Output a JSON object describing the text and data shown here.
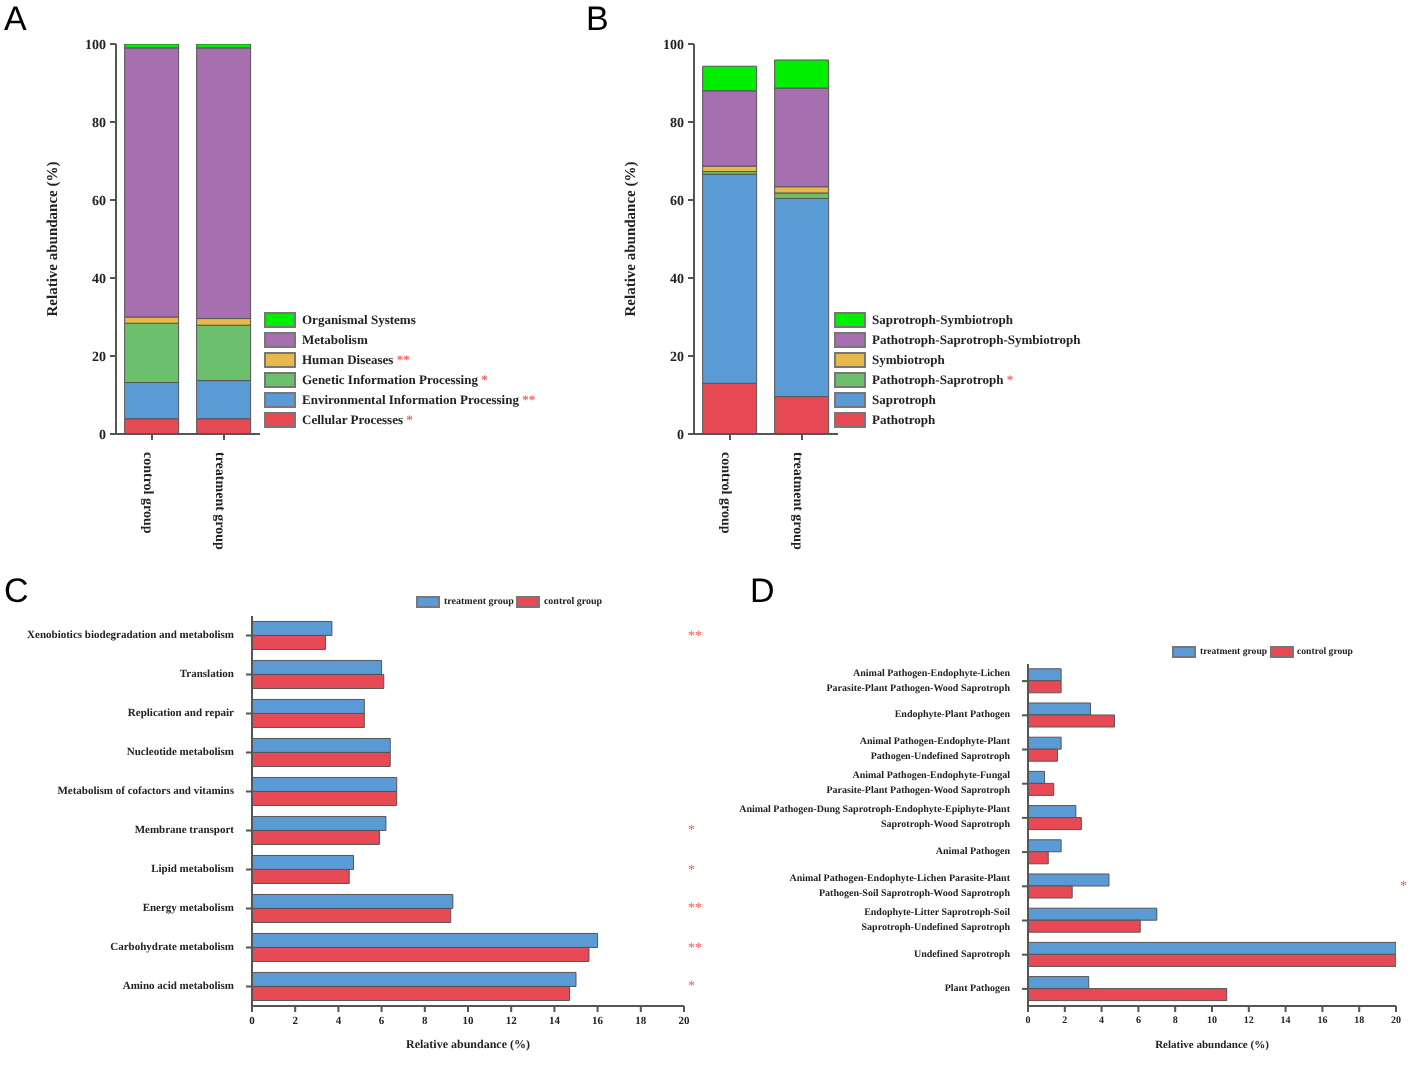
{
  "chart_data": [
    {
      "type": "bar",
      "stacked": true,
      "title": "A",
      "ylabel": "Relative abundance (%)",
      "categories": [
        "control group",
        "treatment group"
      ],
      "ylim": [
        0,
        100
      ],
      "yticks": [
        0,
        20,
        40,
        60,
        80,
        100
      ],
      "legend": "right",
      "series": [
        {
          "name": "Cellular Processes *",
          "color": "#e84a55",
          "values": [
            3.9,
            3.9
          ]
        },
        {
          "name": "Environmental Information Processing **",
          "color": "#5b9bd5",
          "values": [
            9.3,
            9.8
          ]
        },
        {
          "name": "Genetic Information Processing *",
          "color": "#6cbf6c",
          "values": [
            15.2,
            14.2
          ]
        },
        {
          "name": "Human Diseases **",
          "color": "#e8b94a",
          "values": [
            1.6,
            1.7
          ]
        },
        {
          "name": "Metabolism",
          "color": "#a66fb0",
          "values": [
            69.0,
            69.4
          ]
        },
        {
          "name": "Organismal Systems",
          "color": "#00ee00",
          "values": [
            1.0,
            1.0
          ]
        }
      ]
    },
    {
      "type": "bar",
      "stacked": true,
      "title": "B",
      "ylabel": "Relative abundance (%)",
      "categories": [
        "control group",
        "treatment group"
      ],
      "ylim": [
        0,
        100
      ],
      "yticks": [
        0,
        20,
        40,
        60,
        80,
        100
      ],
      "legend": "right",
      "series": [
        {
          "name": "Pathotroph",
          "color": "#e84a55",
          "values": [
            13.0,
            9.6
          ]
        },
        {
          "name": "Saprotroph",
          "color": "#5b9bd5",
          "values": [
            53.6,
            50.8
          ]
        },
        {
          "name": "Pathotroph-Saprotroph *",
          "color": "#6cbf6c",
          "values": [
            0.7,
            1.4
          ]
        },
        {
          "name": "Symbiotroph",
          "color": "#e8b94a",
          "values": [
            1.4,
            1.6
          ]
        },
        {
          "name": "Pathotroph-Saprotroph-Symbiotroph",
          "color": "#a66fb0",
          "values": [
            19.3,
            25.3
          ]
        },
        {
          "name": "Saprotroph-Symbiotroph",
          "color": "#00ee00",
          "values": [
            6.3,
            7.2
          ]
        }
      ]
    },
    {
      "type": "bar",
      "orientation": "horizontal",
      "title": "C",
      "xlabel": "Relative abundance (%)",
      "categories": [
        "Xenobiotics biodegradation and metabolism",
        "Translation",
        "Replication and repair",
        "Nucleotide metabolism",
        "Metabolism of cofactors and vitamins",
        "Membrane transport",
        "Lipid metabolism",
        "Energy metabolism",
        "Carbohydrate metabolism",
        "Amino acid metabolism"
      ],
      "xlim": [
        0,
        20
      ],
      "xticks": [
        0,
        2,
        4,
        6,
        8,
        10,
        12,
        14,
        16,
        18,
        20
      ],
      "legend": "top right",
      "series": [
        {
          "name": "treatment group",
          "color": "#5b9bd5",
          "values": [
            3.7,
            6.0,
            5.2,
            6.4,
            6.7,
            6.2,
            4.7,
            9.3,
            16.0,
            15.0
          ]
        },
        {
          "name": "control group",
          "color": "#e84a55",
          "values": [
            3.4,
            6.1,
            5.2,
            6.4,
            6.7,
            5.9,
            4.5,
            9.2,
            15.6,
            14.7
          ]
        }
      ],
      "annotations": [
        "**",
        "*",
        "*",
        "**",
        "**",
        "*"
      ]
    },
    {
      "type": "bar",
      "orientation": "horizontal",
      "title": "D",
      "xlabel": "Relative abundance (%)",
      "categories": [
        "Animal Pathogen-Endophyte-Lichen\nParasite-Plant Pathogen-Wood Saprotroph",
        "Endophyte-Plant Pathogen",
        "Animal Pathogen-Endophyte-Plant\nPathogen-Undefined Saprotroph",
        "Animal Pathogen-Endophyte-Fungal\nParasite-Plant Pathogen-Wood Saprotroph",
        "Animal Pathogen-Dung Saprotroph-Endophyte-Epiphyte-Plant\nSaprotroph-Wood Saprotroph",
        "Animal Pathogen",
        "Animal Pathogen-Endophyte-Lichen Parasite-Plant\nPathogen-Soil Saprotroph-Wood Saprotroph",
        "Endophyte-Litter Saprotroph-Soil\nSaprotroph-Undefined Saprotroph",
        "Undefined Saprotroph",
        "Plant Pathogen"
      ],
      "xlim": [
        0,
        20
      ],
      "xticks": [
        0,
        2,
        4,
        6,
        8,
        10,
        12,
        14,
        16,
        18,
        20
      ],
      "legend": "top right",
      "series": [
        {
          "name": "treatment group",
          "color": "#5b9bd5",
          "values": [
            1.8,
            3.4,
            1.8,
            0.9,
            2.6,
            1.8,
            4.4,
            7.0,
            20,
            3.3
          ]
        },
        {
          "name": "control group",
          "color": "#e84a55",
          "values": [
            1.8,
            4.7,
            1.6,
            1.4,
            2.9,
            1.1,
            2.4,
            6.1,
            20,
            10.8
          ]
        }
      ],
      "annotations": [
        "*"
      ]
    }
  ]
}
